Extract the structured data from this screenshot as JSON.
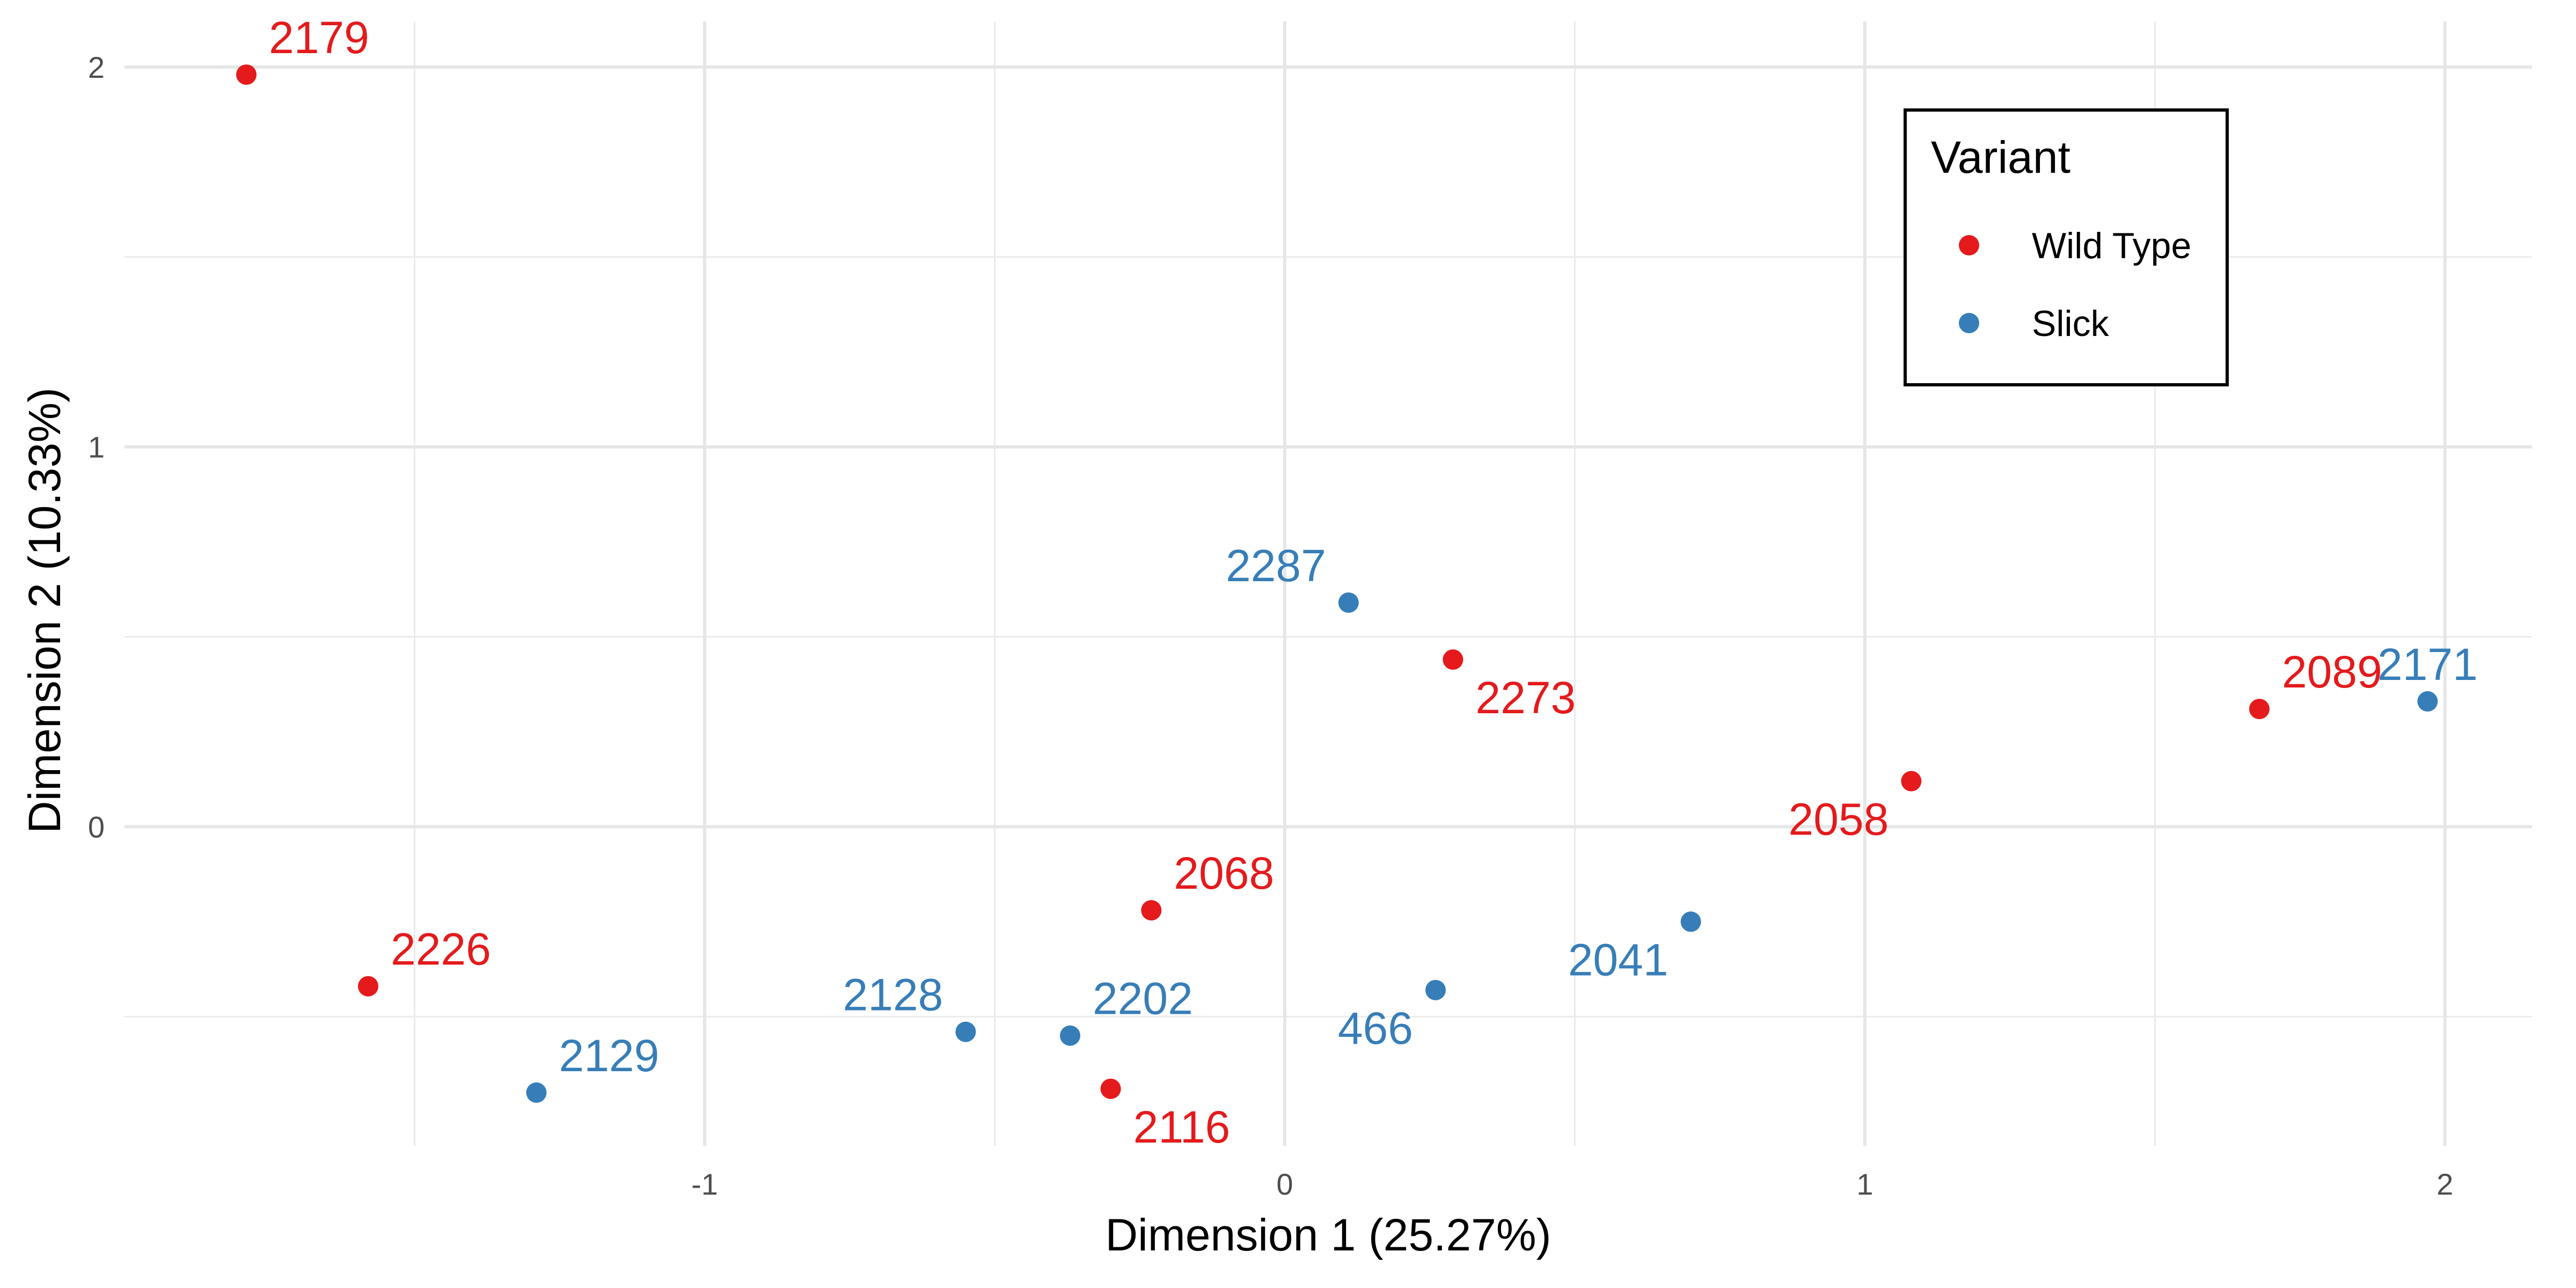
{
  "chart_data": {
    "type": "scatter",
    "xlabel": "Dimension 1 (25.27%)",
    "ylabel": "Dimension 2 (10.33%)",
    "xlim": [
      -2.0,
      2.15
    ],
    "ylim": [
      -0.84,
      2.12
    ],
    "x_ticks": [
      -1,
      0,
      1,
      2
    ],
    "x_tick_labels": [
      "-1",
      "0",
      "1",
      "2"
    ],
    "y_ticks": [
      0,
      1,
      2
    ],
    "y_tick_labels": [
      "0",
      "1",
      "2"
    ],
    "x_minor_gridlines": [
      -1.5,
      -0.5,
      0.5,
      1.5
    ],
    "y_minor_gridlines": [
      -0.5,
      0.5,
      1.5
    ],
    "grid": true,
    "legend": {
      "title": "Variant",
      "placement": "top-right inside plot",
      "entries": [
        {
          "label": "Wild Type",
          "color": "#E41A1C"
        },
        {
          "label": "Slick",
          "color": "#377EB8"
        }
      ]
    },
    "colors": {
      "Wild Type": "#E41A1C",
      "Slick": "#377EB8"
    },
    "points": [
      {
        "label": "2179",
        "variant": "Wild Type",
        "x": -1.79,
        "y": 1.98,
        "label_side": "upper-right"
      },
      {
        "label": "2287",
        "variant": "Slick",
        "x": 0.11,
        "y": 0.59,
        "label_side": "upper-left"
      },
      {
        "label": "2273",
        "variant": "Wild Type",
        "x": 0.29,
        "y": 0.44,
        "label_side": "lower-right"
      },
      {
        "label": "2089",
        "variant": "Wild Type",
        "x": 1.68,
        "y": 0.31,
        "label_side": "upper-right"
      },
      {
        "label": "2171",
        "variant": "Slick",
        "x": 1.97,
        "y": 0.33,
        "label_side": "above"
      },
      {
        "label": "2058",
        "variant": "Wild Type",
        "x": 1.08,
        "y": 0.12,
        "label_side": "lower-left"
      },
      {
        "label": "2068",
        "variant": "Wild Type",
        "x": -0.23,
        "y": -0.22,
        "label_side": "upper-right"
      },
      {
        "label": "2041",
        "variant": "Slick",
        "x": 0.7,
        "y": -0.25,
        "label_side": "lower-left"
      },
      {
        "label": "2226",
        "variant": "Wild Type",
        "x": -1.58,
        "y": -0.42,
        "label_side": "upper-right"
      },
      {
        "label": "466",
        "variant": "Slick",
        "x": 0.26,
        "y": -0.43,
        "label_side": "lower-left"
      },
      {
        "label": "2128",
        "variant": "Slick",
        "x": -0.55,
        "y": -0.54,
        "label_side": "upper-left"
      },
      {
        "label": "2202",
        "variant": "Slick",
        "x": -0.37,
        "y": -0.55,
        "label_side": "upper-right"
      },
      {
        "label": "2129",
        "variant": "Slick",
        "x": -1.29,
        "y": -0.7,
        "label_side": "upper-right"
      },
      {
        "label": "2116",
        "variant": "Wild Type",
        "x": -0.3,
        "y": -0.69,
        "label_side": "lower-right"
      }
    ]
  }
}
